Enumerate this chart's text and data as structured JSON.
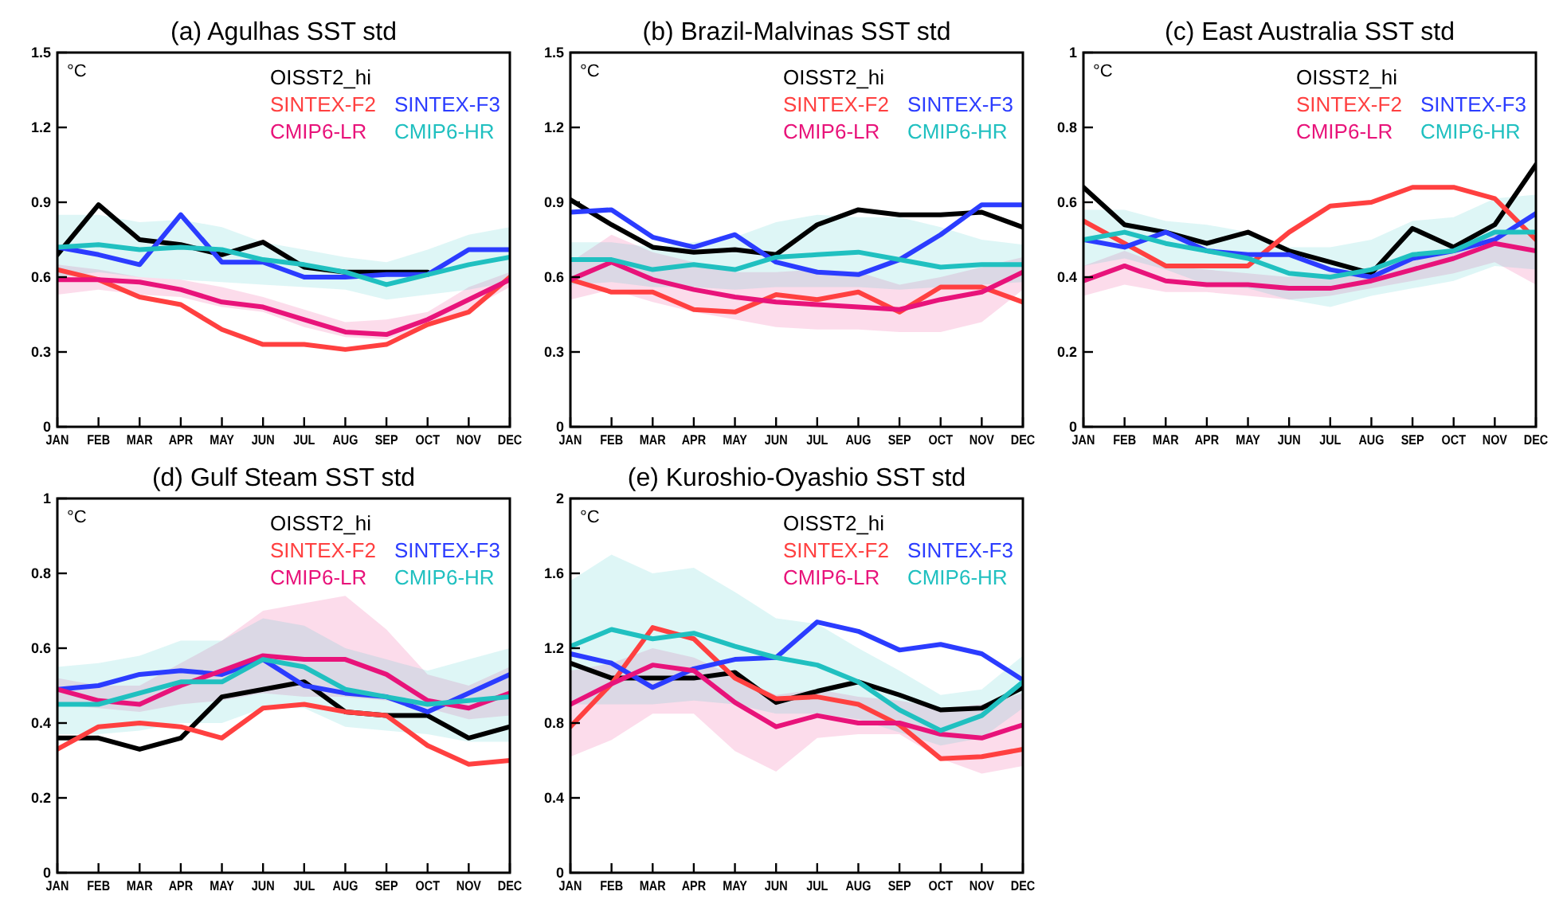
{
  "chart_data": [
    {
      "type": "line",
      "title": "(a) Agulhas SST std",
      "ylabel": "°C",
      "legend": "top right",
      "categories": [
        "JAN",
        "FEB",
        "MAR",
        "APR",
        "MAY",
        "JUN",
        "JUL",
        "AUG",
        "SEP",
        "OCT",
        "NOV",
        "DEC"
      ],
      "ylim": [
        0,
        1.5
      ],
      "yticks": [
        0,
        0.3,
        0.6,
        0.9,
        1.2,
        1.5
      ],
      "series": [
        {
          "name": "OISST2_hi",
          "color": "#000000",
          "values": [
            0.69,
            0.89,
            0.75,
            0.73,
            0.69,
            0.74,
            0.64,
            0.62,
            0.62,
            0.62,
            null,
            null
          ]
        },
        {
          "name": "SINTEX-F2",
          "color": "#ff4040",
          "values": [
            0.63,
            0.59,
            0.52,
            0.49,
            0.39,
            0.33,
            0.33,
            0.31,
            0.33,
            0.41,
            0.46,
            0.6
          ]
        },
        {
          "name": "SINTEX-F3",
          "color": "#2b3cff",
          "values": [
            0.72,
            0.69,
            0.65,
            0.85,
            0.66,
            0.66,
            0.6,
            0.6,
            0.61,
            0.61,
            0.71,
            0.71
          ]
        },
        {
          "name": "CMIP6-LR",
          "color": "#e8137a",
          "values": [
            0.59,
            0.59,
            0.58,
            0.55,
            0.5,
            0.48,
            0.43,
            0.38,
            0.37,
            0.43,
            0.51,
            0.59
          ],
          "lower": [
            0.53,
            0.55,
            0.53,
            0.52,
            0.48,
            0.46,
            0.4,
            0.36,
            0.35,
            0.4,
            0.47,
            0.56
          ],
          "upper": [
            0.65,
            0.63,
            0.6,
            0.59,
            0.56,
            0.52,
            0.47,
            0.42,
            0.43,
            0.46,
            0.56,
            0.62
          ]
        },
        {
          "name": "CMIP6-HR",
          "color": "#20c0c0",
          "values": [
            0.72,
            0.73,
            0.71,
            0.72,
            0.71,
            0.67,
            0.65,
            0.62,
            0.57,
            0.61,
            0.65,
            0.68
          ],
          "lower": [
            0.6,
            0.62,
            0.6,
            0.59,
            0.58,
            0.57,
            0.56,
            0.55,
            0.51,
            0.53,
            0.55,
            0.58
          ],
          "upper": [
            0.85,
            0.85,
            0.82,
            0.83,
            0.8,
            0.74,
            0.71,
            0.68,
            0.66,
            0.71,
            0.77,
            0.8
          ]
        }
      ]
    },
    {
      "type": "line",
      "title": "(b) Brazil-Malvinas SST std",
      "ylabel": "°C",
      "legend": "top right",
      "categories": [
        "JAN",
        "FEB",
        "MAR",
        "APR",
        "MAY",
        "JUN",
        "JUL",
        "AUG",
        "SEP",
        "OCT",
        "NOV",
        "DEC"
      ],
      "ylim": [
        0,
        1.5
      ],
      "yticks": [
        0,
        0.3,
        0.6,
        0.9,
        1.2,
        1.5
      ],
      "series": [
        {
          "name": "OISST2_hi",
          "color": "#000000",
          "values": [
            0.91,
            0.81,
            0.72,
            0.7,
            0.71,
            0.69,
            0.81,
            0.87,
            0.85,
            0.85,
            0.86,
            0.8
          ]
        },
        {
          "name": "SINTEX-F2",
          "color": "#ff4040",
          "values": [
            0.59,
            0.54,
            0.54,
            0.47,
            0.46,
            0.53,
            0.51,
            0.54,
            0.46,
            0.56,
            0.56,
            0.5
          ]
        },
        {
          "name": "SINTEX-F3",
          "color": "#2b3cff",
          "values": [
            0.86,
            0.87,
            0.76,
            0.72,
            0.77,
            0.66,
            0.62,
            0.61,
            0.67,
            0.77,
            0.89,
            0.89
          ]
        },
        {
          "name": "CMIP6-LR",
          "color": "#e8137a",
          "values": [
            0.59,
            0.66,
            0.59,
            0.55,
            0.52,
            0.5,
            0.49,
            0.48,
            0.47,
            0.51,
            0.54,
            0.62
          ],
          "lower": [
            0.51,
            0.55,
            0.5,
            0.46,
            0.43,
            0.4,
            0.39,
            0.39,
            0.38,
            0.38,
            0.42,
            0.55
          ],
          "upper": [
            0.66,
            0.77,
            0.7,
            0.66,
            0.62,
            0.62,
            0.63,
            0.62,
            0.57,
            0.6,
            0.64,
            0.68
          ]
        },
        {
          "name": "CMIP6-HR",
          "color": "#20c0c0",
          "values": [
            0.67,
            0.67,
            0.63,
            0.65,
            0.63,
            0.68,
            0.69,
            0.7,
            0.67,
            0.64,
            0.65,
            0.65
          ],
          "lower": [
            0.57,
            0.58,
            0.56,
            0.56,
            0.55,
            0.56,
            0.56,
            0.56,
            0.55,
            0.56,
            0.57,
            0.58
          ],
          "upper": [
            0.74,
            0.74,
            0.72,
            0.74,
            0.76,
            0.82,
            0.85,
            0.84,
            0.84,
            0.8,
            0.75,
            0.73
          ]
        }
      ]
    },
    {
      "type": "line",
      "title": "(c) East Australia SST std",
      "ylabel": "°C",
      "legend": "top right",
      "categories": [
        "JAN",
        "FEB",
        "MAR",
        "APR",
        "MAY",
        "JUN",
        "JUL",
        "AUG",
        "SEP",
        "OCT",
        "NOV",
        "DEC"
      ],
      "ylim": [
        0,
        1
      ],
      "yticks": [
        0,
        0.2,
        0.4,
        0.6,
        0.8,
        1
      ],
      "series": [
        {
          "name": "OISST2_hi",
          "color": "#000000",
          "values": [
            0.64,
            0.54,
            0.52,
            0.49,
            0.52,
            0.47,
            0.44,
            0.41,
            0.53,
            0.48,
            0.54,
            0.7
          ]
        },
        {
          "name": "SINTEX-F2",
          "color": "#ff4040",
          "values": [
            0.55,
            0.49,
            0.43,
            0.43,
            0.43,
            0.52,
            0.59,
            0.6,
            0.64,
            0.64,
            0.61,
            0.5
          ]
        },
        {
          "name": "SINTEX-F3",
          "color": "#2b3cff",
          "values": [
            0.5,
            0.48,
            0.52,
            0.47,
            0.46,
            0.46,
            0.42,
            0.4,
            0.45,
            0.47,
            0.5,
            0.57
          ]
        },
        {
          "name": "CMIP6-LR",
          "color": "#e8137a",
          "values": [
            0.39,
            0.43,
            0.39,
            0.38,
            0.38,
            0.37,
            0.37,
            0.39,
            0.42,
            0.45,
            0.49,
            0.47
          ],
          "lower": [
            0.35,
            0.38,
            0.36,
            0.36,
            0.35,
            0.34,
            0.35,
            0.37,
            0.39,
            0.41,
            0.44,
            0.38
          ],
          "upper": [
            0.43,
            0.47,
            0.43,
            0.42,
            0.41,
            0.4,
            0.41,
            0.42,
            0.45,
            0.48,
            0.52,
            0.51
          ]
        },
        {
          "name": "CMIP6-HR",
          "color": "#20c0c0",
          "values": [
            0.5,
            0.52,
            0.49,
            0.47,
            0.45,
            0.41,
            0.4,
            0.42,
            0.46,
            0.47,
            0.52,
            0.52
          ],
          "lower": [
            0.43,
            0.45,
            0.42,
            0.38,
            0.37,
            0.34,
            0.32,
            0.35,
            0.37,
            0.39,
            0.43,
            0.42
          ],
          "upper": [
            0.58,
            0.58,
            0.55,
            0.54,
            0.52,
            0.48,
            0.48,
            0.5,
            0.55,
            0.56,
            0.61,
            0.62
          ]
        }
      ]
    },
    {
      "type": "line",
      "title": "(d) Gulf Steam SST std",
      "ylabel": "°C",
      "legend": "top right",
      "categories": [
        "JAN",
        "FEB",
        "MAR",
        "APR",
        "MAY",
        "JUN",
        "JUL",
        "AUG",
        "SEP",
        "OCT",
        "NOV",
        "DEC"
      ],
      "ylim": [
        0,
        1
      ],
      "yticks": [
        0,
        0.2,
        0.4,
        0.6,
        0.8,
        1
      ],
      "series": [
        {
          "name": "OISST2_hi",
          "color": "#000000",
          "values": [
            0.36,
            0.36,
            0.33,
            0.36,
            0.47,
            0.49,
            0.51,
            0.43,
            0.42,
            0.42,
            0.36,
            0.39
          ]
        },
        {
          "name": "SINTEX-F2",
          "color": "#ff4040",
          "values": [
            0.33,
            0.39,
            0.4,
            0.39,
            0.36,
            0.44,
            0.45,
            0.43,
            0.42,
            0.34,
            0.29,
            0.3
          ]
        },
        {
          "name": "SINTEX-F3",
          "color": "#2b3cff",
          "values": [
            0.49,
            0.5,
            0.53,
            0.54,
            0.53,
            0.57,
            0.5,
            0.48,
            0.47,
            0.43,
            0.48,
            0.53
          ]
        },
        {
          "name": "CMIP6-LR",
          "color": "#e8137a",
          "values": [
            0.49,
            0.46,
            0.45,
            0.5,
            0.54,
            0.58,
            0.57,
            0.57,
            0.53,
            0.46,
            0.44,
            0.48
          ],
          "lower": [
            0.45,
            0.44,
            0.43,
            0.45,
            0.46,
            0.48,
            0.47,
            0.47,
            0.46,
            0.44,
            0.41,
            0.42
          ],
          "upper": [
            0.52,
            0.5,
            0.5,
            0.56,
            0.62,
            0.7,
            0.72,
            0.74,
            0.65,
            0.53,
            0.5,
            0.55
          ]
        },
        {
          "name": "CMIP6-HR",
          "color": "#20c0c0",
          "values": [
            0.45,
            0.45,
            0.48,
            0.51,
            0.51,
            0.57,
            0.55,
            0.49,
            0.47,
            0.45,
            0.46,
            0.47
          ],
          "lower": [
            0.37,
            0.37,
            0.38,
            0.4,
            0.4,
            0.44,
            0.44,
            0.39,
            0.38,
            0.37,
            0.35,
            0.35
          ],
          "upper": [
            0.55,
            0.56,
            0.58,
            0.62,
            0.62,
            0.68,
            0.66,
            0.6,
            0.57,
            0.54,
            0.57,
            0.6
          ]
        }
      ]
    },
    {
      "type": "line",
      "title": "(e) Kuroshio-Oyashio SST std",
      "ylabel": "°C",
      "legend": "top right",
      "categories": [
        "JAN",
        "FEB",
        "MAR",
        "APR",
        "MAY",
        "JUN",
        "JUL",
        "AUG",
        "SEP",
        "OCT",
        "NOV",
        "DEC"
      ],
      "ylim": [
        0,
        2
      ],
      "yticks": [
        0,
        0.4,
        0.8,
        1.2,
        1.6,
        2
      ],
      "series": [
        {
          "name": "OISST2_hi",
          "color": "#000000",
          "values": [
            1.12,
            1.04,
            1.04,
            1.04,
            1.07,
            0.91,
            0.97,
            1.02,
            0.95,
            0.87,
            0.88,
            0.99
          ]
        },
        {
          "name": "SINTEX-F2",
          "color": "#ff4040",
          "values": [
            0.78,
            1.01,
            1.31,
            1.25,
            1.04,
            0.93,
            0.94,
            0.9,
            0.79,
            0.61,
            0.62,
            0.66
          ]
        },
        {
          "name": "SINTEX-F3",
          "color": "#2b3cff",
          "values": [
            1.17,
            1.12,
            0.99,
            1.09,
            1.14,
            1.15,
            1.34,
            1.29,
            1.19,
            1.22,
            1.17,
            1.03
          ]
        },
        {
          "name": "CMIP6-LR",
          "color": "#e8137a",
          "values": [
            0.9,
            1.01,
            1.11,
            1.08,
            0.91,
            0.78,
            0.84,
            0.8,
            0.8,
            0.74,
            0.72,
            0.79
          ],
          "lower": [
            0.62,
            0.71,
            0.85,
            0.85,
            0.65,
            0.54,
            0.72,
            0.74,
            0.74,
            0.61,
            0.53,
            0.57
          ],
          "upper": [
            1.08,
            1.12,
            1.2,
            1.15,
            1.05,
            0.95,
            0.98,
            0.94,
            0.92,
            0.88,
            0.9,
            0.96
          ]
        },
        {
          "name": "CMIP6-HR",
          "color": "#20c0c0",
          "values": [
            1.21,
            1.3,
            1.25,
            1.28,
            1.21,
            1.15,
            1.11,
            1.02,
            0.87,
            0.76,
            0.84,
            1.02
          ],
          "lower": [
            0.9,
            0.9,
            0.9,
            0.92,
            0.9,
            0.85,
            0.85,
            0.82,
            0.75,
            0.68,
            0.72,
            0.88
          ],
          "upper": [
            1.56,
            1.7,
            1.6,
            1.63,
            1.5,
            1.36,
            1.33,
            1.2,
            1.08,
            0.95,
            0.98,
            1.16
          ]
        }
      ]
    }
  ]
}
